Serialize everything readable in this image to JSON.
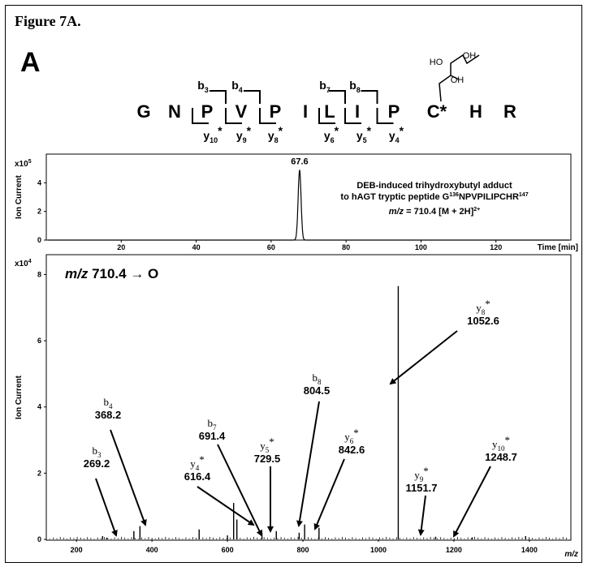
{
  "figure_title": "Figure 7A.",
  "panel_letter": "A",
  "sequence": {
    "residues": [
      "G",
      "N",
      "P",
      "V",
      "P",
      "I",
      "L",
      "I",
      "P",
      "C*",
      "H",
      "R"
    ],
    "b_ions": [
      {
        "ion": "b",
        "num": "3"
      },
      {
        "ion": "b",
        "num": "4"
      },
      {
        "ion": "b",
        "num": "7"
      },
      {
        "ion": "b",
        "num": "8"
      }
    ],
    "y_ions": [
      {
        "ion": "y",
        "num": "10",
        "star": "*"
      },
      {
        "ion": "y",
        "num": "9",
        "star": "*"
      },
      {
        "ion": "y",
        "num": "8",
        "star": "*"
      },
      {
        "ion": "y",
        "num": "6",
        "star": "*"
      },
      {
        "ion": "y",
        "num": "5",
        "star": "*"
      },
      {
        "ion": "y",
        "num": "4",
        "star": "*"
      }
    ],
    "adduct_labels": [
      "HO",
      "OH",
      "OH"
    ]
  },
  "chart_data": [
    {
      "type": "line",
      "name": "chromatogram",
      "exponent_label": "x10",
      "exponent": "5",
      "ylabel": "Ion Current",
      "xlabel": "Time [min]",
      "xlim": [
        0,
        140
      ],
      "ylim": [
        0,
        6
      ],
      "xticks": [
        20,
        40,
        60,
        80,
        100,
        120
      ],
      "yticks": [
        0,
        2,
        4
      ],
      "peak": {
        "x": 67.6,
        "y": 4.9,
        "label": "67.6"
      },
      "annotation_line1": "DEB-induced trihydroxybutyl adduct",
      "annotation_line2_pre": "to hAGT tryptic peptide G",
      "annotation_line2_sup1": "136",
      "annotation_line2_mid": "NPVPILIPCHR",
      "annotation_line2_sup2": "147",
      "annotation_line3_mz": "m/z",
      "annotation_line3_rest": " = 710.4 [M + 2H]",
      "annotation_line3_sup": "2+"
    },
    {
      "type": "bar",
      "name": "ms2-spectrum",
      "exponent_label": "x10",
      "exponent": "4",
      "ylabel": "Ion Current",
      "xlabel": "m/z",
      "title_mz": "m/z",
      "title_rest": " 710.4 → O",
      "xlim": [
        120,
        1510
      ],
      "ylim": [
        0,
        8.6
      ],
      "xticks": [
        200,
        400,
        600,
        800,
        1000,
        1200,
        1400
      ],
      "yticks": [
        0,
        2,
        4,
        6,
        8
      ],
      "peaks": [
        {
          "mz": 269.2,
          "i": 0.1
        },
        {
          "mz": 280,
          "i": 0.05
        },
        {
          "mz": 352,
          "i": 0.25
        },
        {
          "mz": 368.2,
          "i": 0.4
        },
        {
          "mz": 525,
          "i": 0.3
        },
        {
          "mz": 600,
          "i": 0.12
        },
        {
          "mz": 616.4,
          "i": 1.1
        },
        {
          "mz": 625,
          "i": 0.6
        },
        {
          "mz": 691.4,
          "i": 0.2
        },
        {
          "mz": 729.5,
          "i": 0.25
        },
        {
          "mz": 790,
          "i": 0.2
        },
        {
          "mz": 804.5,
          "i": 0.45
        },
        {
          "mz": 842.6,
          "i": 0.35
        },
        {
          "mz": 1052.6,
          "i": 7.65
        },
        {
          "mz": 1151.7,
          "i": 0.08
        },
        {
          "mz": 1248.7,
          "i": 0.06
        },
        {
          "mz": 1390,
          "i": 0.1
        }
      ],
      "annotations": [
        {
          "ion": "b",
          "num": "3",
          "star": "",
          "value": "269.2"
        },
        {
          "ion": "b",
          "num": "4",
          "star": "",
          "value": "368.2"
        },
        {
          "ion": "y",
          "num": "4",
          "star": "*",
          "value": "616.4"
        },
        {
          "ion": "b",
          "num": "7",
          "star": "",
          "value": "691.4"
        },
        {
          "ion": "y",
          "num": "5",
          "star": "*",
          "value": "729.5"
        },
        {
          "ion": "b",
          "num": "8",
          "star": "",
          "value": "804.5"
        },
        {
          "ion": "y",
          "num": "6",
          "star": "*",
          "value": "842.6"
        },
        {
          "ion": "y",
          "num": "8",
          "star": "*",
          "value": "1052.6"
        },
        {
          "ion": "y",
          "num": "9",
          "star": "*",
          "value": "1151.7"
        },
        {
          "ion": "y",
          "num": "10",
          "star": "*",
          "value": "1248.7"
        }
      ]
    }
  ]
}
